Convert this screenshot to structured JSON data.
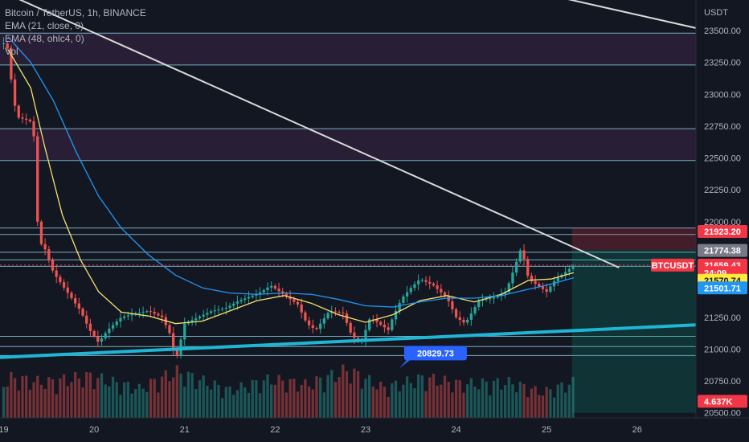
{
  "header": {
    "symbol_line": "Bitcoin / TetherUS, 1h, BINANCE",
    "ema21_line": "EMA (21, close, 0)",
    "ema48_line": "EMA (48, ohlc4, 0)",
    "vol_line": "Vol"
  },
  "colors": {
    "background": "#131722",
    "up": "#26a69a",
    "down": "#ef5350",
    "ema21": "#f5e36b",
    "ema48": "#2196f3",
    "trendline_cyan": "#1fb6d6",
    "trendline_white": "#d9d9d9",
    "zone": "#3a2446",
    "level_line": "#8fd3e8"
  },
  "chart_data": {
    "type": "candlestick",
    "title": "Bitcoin / TetherUS, 1h, BINANCE",
    "price_axis": {
      "currency": "USDT",
      "ylim": [
        20460,
        23740
      ],
      "ticks": [
        "20500.00",
        "20750.00",
        "21000.00",
        "21250.00",
        "21500.00",
        "21750.00",
        "22000.00",
        "22250.00",
        "22500.00",
        "22750.00",
        "23000.00",
        "23250.00",
        "23500.00"
      ]
    },
    "time_axis": {
      "ticks": [
        {
          "label": "19",
          "day": 19
        },
        {
          "label": "20",
          "day": 20
        },
        {
          "label": "21",
          "day": 21
        },
        {
          "label": "22",
          "day": 22
        },
        {
          "label": "23",
          "day": 23
        },
        {
          "label": "24",
          "day": 24
        },
        {
          "label": "25",
          "day": 25
        },
        {
          "label": "26",
          "day": 26
        }
      ],
      "xlim_days": [
        18.96,
        26.65
      ]
    },
    "price_path": [
      [
        19.0,
        23400
      ],
      [
        19.05,
        23350
      ],
      [
        19.1,
        23000
      ],
      [
        19.15,
        22820
      ],
      [
        19.25,
        22800
      ],
      [
        19.32,
        22780
      ],
      [
        19.36,
        22450
      ],
      [
        19.38,
        21850
      ],
      [
        19.45,
        21800
      ],
      [
        19.55,
        21600
      ],
      [
        19.7,
        21450
      ],
      [
        19.85,
        21300
      ],
      [
        19.95,
        21150
      ],
      [
        20.05,
        21050
      ],
      [
        20.15,
        21150
      ],
      [
        20.3,
        21250
      ],
      [
        20.45,
        21280
      ],
      [
        20.6,
        21300
      ],
      [
        20.75,
        21250
      ],
      [
        20.85,
        21100
      ],
      [
        20.9,
        20900
      ],
      [
        21.0,
        21200
      ],
      [
        21.15,
        21250
      ],
      [
        21.3,
        21300
      ],
      [
        21.45,
        21320
      ],
      [
        21.6,
        21380
      ],
      [
        21.75,
        21420
      ],
      [
        21.85,
        21450
      ],
      [
        21.95,
        21500
      ],
      [
        22.05,
        21450
      ],
      [
        22.15,
        21400
      ],
      [
        22.25,
        21350
      ],
      [
        22.35,
        21200
      ],
      [
        22.45,
        21150
      ],
      [
        22.6,
        21300
      ],
      [
        22.75,
        21280
      ],
      [
        22.85,
        21100
      ],
      [
        22.95,
        21050
      ],
      [
        23.05,
        21250
      ],
      [
        23.15,
        21200
      ],
      [
        23.25,
        21150
      ],
      [
        23.3,
        21250
      ],
      [
        23.4,
        21400
      ],
      [
        23.5,
        21480
      ],
      [
        23.6,
        21550
      ],
      [
        23.75,
        21500
      ],
      [
        23.9,
        21400
      ],
      [
        24.0,
        21250
      ],
      [
        24.1,
        21200
      ],
      [
        24.25,
        21380
      ],
      [
        24.4,
        21400
      ],
      [
        24.55,
        21450
      ],
      [
        24.65,
        21650
      ],
      [
        24.72,
        21800
      ],
      [
        24.8,
        21550
      ],
      [
        24.9,
        21500
      ],
      [
        25.0,
        21450
      ],
      [
        25.1,
        21550
      ],
      [
        25.2,
        21600
      ],
      [
        25.3,
        21659
      ]
    ],
    "volume_axis_max": 9000,
    "volume_bars": [
      [
        19.05,
        5200
      ],
      [
        19.45,
        4600
      ],
      [
        19.95,
        5400
      ],
      [
        20.5,
        3800
      ],
      [
        20.9,
        6000
      ],
      [
        21.5,
        3600
      ],
      [
        21.95,
        5000
      ],
      [
        22.35,
        4300
      ],
      [
        22.8,
        6200
      ],
      [
        23.2,
        3900
      ],
      [
        23.65,
        5200
      ],
      [
        24.05,
        4400
      ],
      [
        24.6,
        4600
      ],
      [
        24.95,
        3300
      ],
      [
        25.3,
        4637
      ]
    ],
    "series": [
      {
        "name": "EMA (21, close, 0)",
        "points": [
          [
            19.05,
            23350
          ],
          [
            19.3,
            23050
          ],
          [
            19.45,
            22600
          ],
          [
            19.65,
            22050
          ],
          [
            19.85,
            21700
          ],
          [
            20.05,
            21450
          ],
          [
            20.3,
            21290
          ],
          [
            20.6,
            21260
          ],
          [
            20.9,
            21200
          ],
          [
            21.2,
            21220
          ],
          [
            21.5,
            21300
          ],
          [
            21.8,
            21380
          ],
          [
            22.1,
            21420
          ],
          [
            22.4,
            21360
          ],
          [
            22.7,
            21270
          ],
          [
            23.0,
            21210
          ],
          [
            23.3,
            21270
          ],
          [
            23.6,
            21380
          ],
          [
            23.9,
            21420
          ],
          [
            24.2,
            21370
          ],
          [
            24.5,
            21430
          ],
          [
            24.8,
            21540
          ],
          [
            25.05,
            21550
          ],
          [
            25.3,
            21600
          ]
        ]
      },
      {
        "name": "EMA (48, ohlc4, 0)",
        "points": [
          [
            19.05,
            23450
          ],
          [
            19.3,
            23250
          ],
          [
            19.55,
            22950
          ],
          [
            19.8,
            22550
          ],
          [
            20.05,
            22200
          ],
          [
            20.3,
            21950
          ],
          [
            20.6,
            21740
          ],
          [
            20.9,
            21580
          ],
          [
            21.2,
            21480
          ],
          [
            21.5,
            21440
          ],
          [
            21.8,
            21430
          ],
          [
            22.1,
            21440
          ],
          [
            22.4,
            21430
          ],
          [
            22.7,
            21390
          ],
          [
            23.0,
            21340
          ],
          [
            23.3,
            21330
          ],
          [
            23.6,
            21370
          ],
          [
            23.9,
            21400
          ],
          [
            24.2,
            21400
          ],
          [
            24.5,
            21420
          ],
          [
            24.8,
            21470
          ],
          [
            25.05,
            21510
          ],
          [
            25.3,
            21560
          ]
        ]
      }
    ],
    "horizontal_levels": [
      23480,
      23230,
      22730,
      22480,
      21950,
      21900,
      21760,
      21700,
      21650,
      21100,
      21020,
      20950
    ],
    "resistance_zones": [
      [
        23480,
        23230
      ],
      [
        22730,
        22480
      ]
    ],
    "trendlines": [
      {
        "name": "descending",
        "from": [
          19.0,
          23800
        ],
        "to": [
          25.8,
          21640
        ]
      },
      {
        "name": "descending-upper",
        "from": [
          24.9,
          23800
        ],
        "to": [
          26.65,
          23520
        ]
      },
      {
        "name": "ascending",
        "from": [
          18.96,
          20935
        ],
        "to": [
          26.65,
          21190
        ]
      }
    ],
    "position": {
      "entry": 21780,
      "target": 20500,
      "stop": 21950,
      "start_day": 25.28,
      "end_day": 26.65
    },
    "annotation": {
      "label": "20829.73",
      "day": 23.55,
      "price": 21000
    },
    "price_tags": [
      {
        "label": "21923.20",
        "price": 21923,
        "bg": "#f23645",
        "fg": "#ffffff"
      },
      {
        "label": "21774.38",
        "price": 21774,
        "bg": "#787b86",
        "fg": "#ffffff"
      },
      {
        "label": "21659.43",
        "price": 21659,
        "bg": "#f23645",
        "fg": "#ffffff"
      },
      {
        "label": "24:09",
        "price": 21600,
        "bg": "#f23645",
        "fg": "#ffffff"
      },
      {
        "label": "21570.74",
        "price": 21540,
        "bg": "#ffeb3b",
        "fg": "#131722"
      },
      {
        "label": "21501.71",
        "price": 21480,
        "bg": "#2196f3",
        "fg": "#ffffff"
      },
      {
        "label": "4.637K",
        "price": 20590,
        "bg": "#f23645",
        "fg": "#ffffff"
      }
    ],
    "symbol_tag": {
      "label": "BTCUSDT",
      "price": 21659
    }
  }
}
